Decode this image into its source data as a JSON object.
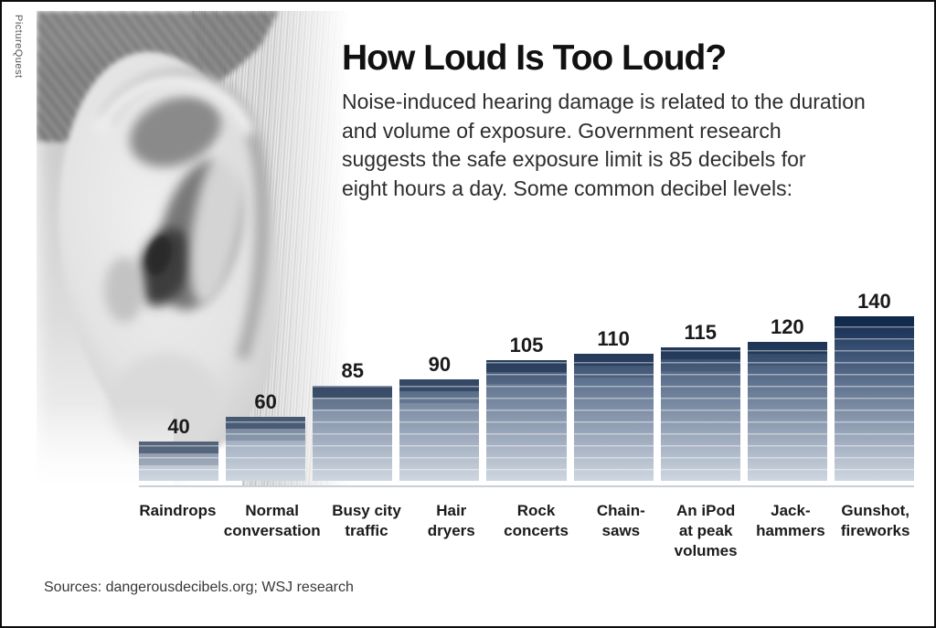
{
  "credit": "PictureQuest",
  "header": {
    "title": "How Loud Is Too Loud?",
    "description": "Noise-induced hearing damage is related to the duration\nand volume of exposure. Government research\nsuggests the safe exposure limit is 85 decibels for\neight hours a day. Some common decibel levels:"
  },
  "source": "Sources: dangerousdecibels.org; WSJ research",
  "chart_data": {
    "type": "bar",
    "title": "Some common decibel levels",
    "unit": "decibels",
    "categories": [
      "Raindrops",
      "Normal\nconversation",
      "Busy city\ntraffic",
      "Hair\ndryers",
      "Rock\nconcerts",
      "Chain-\nsaws",
      "An iPod\nat peak\nvolumes",
      "Jack-\nhammers",
      "Gunshot,\nfireworks"
    ],
    "values": [
      40,
      60,
      85,
      90,
      105,
      110,
      115,
      120,
      140
    ],
    "ylim": [
      0,
      140
    ],
    "value_labels_shown": true,
    "legend": "none",
    "grid": "off",
    "colors": {
      "bar_low": "#ced6e0",
      "bar_high": "#122d56",
      "bar_cap": "rgba(13,34,64,0.55)",
      "band_line": "rgba(255,255,255,0.45)",
      "baseline": "#c9d0da"
    }
  }
}
